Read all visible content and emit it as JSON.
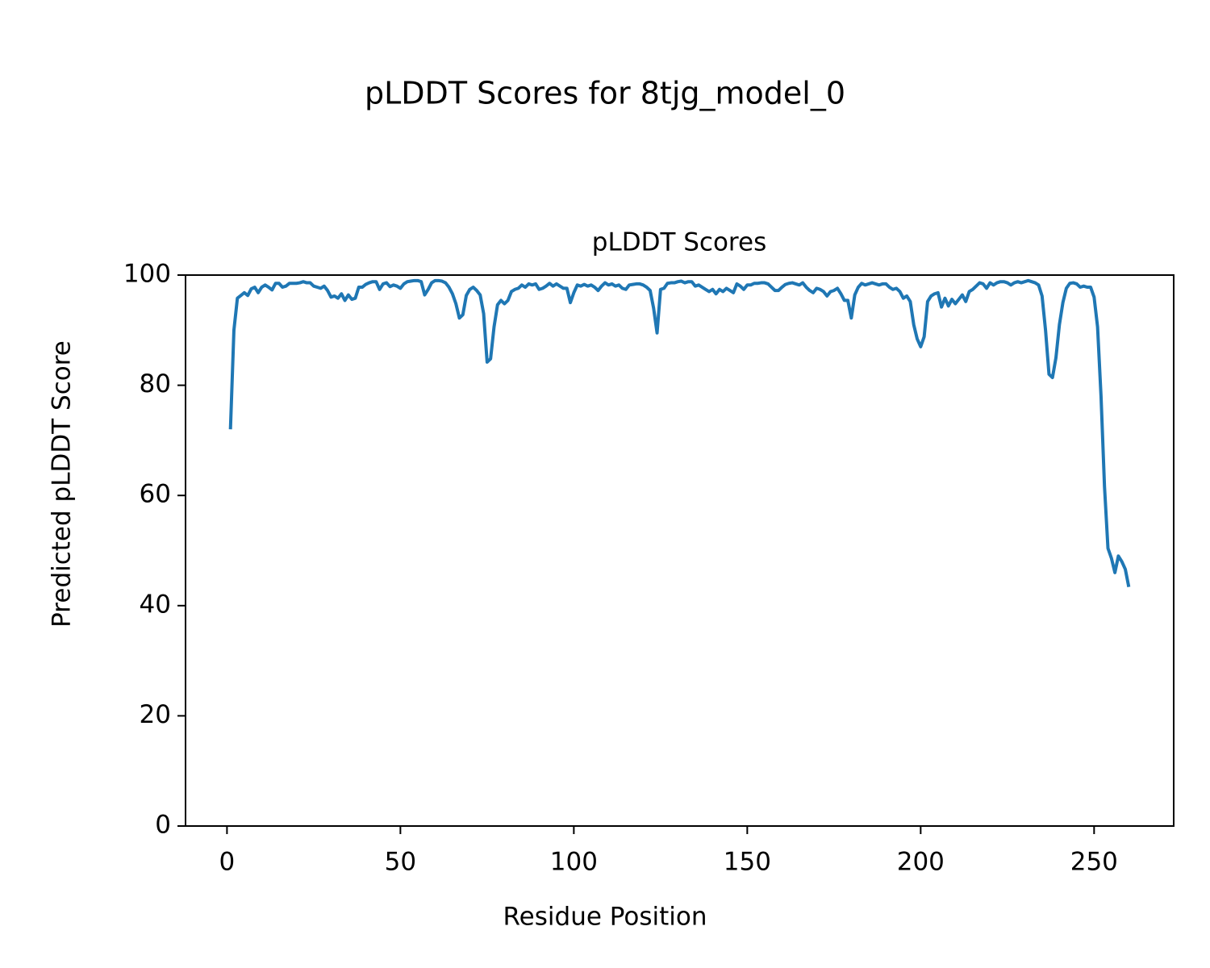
{
  "chart_data": {
    "type": "line",
    "suptitle": "pLDDT Scores for 8tjg_model_0",
    "title": "pLDDT Scores",
    "xlabel": "Residue Position",
    "ylabel": "Predicted pLDDT Score",
    "color": "#1f77b4",
    "xlim": [
      -11.95,
      272.95
    ],
    "ylim": [
      0,
      100
    ],
    "xticks": [
      0,
      50,
      100,
      150,
      200,
      250
    ],
    "yticks": [
      0,
      20,
      40,
      60,
      80,
      100
    ],
    "x": [
      1,
      2,
      3,
      4,
      5,
      6,
      7,
      8,
      9,
      10,
      11,
      12,
      13,
      14,
      15,
      16,
      17,
      18,
      19,
      20,
      21,
      22,
      23,
      24,
      25,
      26,
      27,
      28,
      29,
      30,
      31,
      32,
      33,
      34,
      35,
      36,
      37,
      38,
      39,
      40,
      41,
      42,
      43,
      44,
      45,
      46,
      47,
      48,
      49,
      50,
      51,
      52,
      53,
      54,
      55,
      56,
      57,
      58,
      59,
      60,
      61,
      62,
      63,
      64,
      65,
      66,
      67,
      68,
      69,
      70,
      71,
      72,
      73,
      74,
      75,
      76,
      77,
      78,
      79,
      80,
      81,
      82,
      83,
      84,
      85,
      86,
      87,
      88,
      89,
      90,
      91,
      92,
      93,
      94,
      95,
      96,
      97,
      98,
      99,
      100,
      101,
      102,
      103,
      104,
      105,
      106,
      107,
      108,
      109,
      110,
      111,
      112,
      113,
      114,
      115,
      116,
      117,
      118,
      119,
      120,
      121,
      122,
      123,
      124,
      125,
      126,
      127,
      128,
      129,
      130,
      131,
      132,
      133,
      134,
      135,
      136,
      137,
      138,
      139,
      140,
      141,
      142,
      143,
      144,
      145,
      146,
      147,
      148,
      149,
      150,
      151,
      152,
      153,
      154,
      155,
      156,
      157,
      158,
      159,
      160,
      161,
      162,
      163,
      164,
      165,
      166,
      167,
      168,
      169,
      170,
      171,
      172,
      173,
      174,
      175,
      176,
      177,
      178,
      179,
      180,
      181,
      182,
      183,
      184,
      185,
      186,
      187,
      188,
      189,
      190,
      191,
      192,
      193,
      194,
      195,
      196,
      197,
      198,
      199,
      200,
      201,
      202,
      203,
      204,
      205,
      206,
      207,
      208,
      209,
      210,
      211,
      212,
      213,
      214,
      215,
      216,
      217,
      218,
      219,
      220,
      221,
      222,
      223,
      224,
      225,
      226,
      227,
      228,
      229,
      230,
      231,
      232,
      233,
      234,
      235,
      236,
      237,
      238,
      239,
      240,
      241,
      242,
      243,
      244,
      245,
      246,
      247,
      248,
      249,
      250,
      251,
      252,
      253,
      254,
      255,
      256,
      257,
      258,
      259,
      260
    ],
    "values": [
      72,
      90,
      95.8,
      96.3,
      96.8,
      96.3,
      97.5,
      97.8,
      96.8,
      97.8,
      98.2,
      97.8,
      97.3,
      98.5,
      98.5,
      97.8,
      98,
      98.5,
      98.5,
      98.5,
      98.6,
      98.8,
      98.6,
      98.6,
      98,
      97.8,
      97.6,
      98,
      97.2,
      96,
      96.2,
      95.8,
      96.6,
      95.4,
      96.4,
      95.6,
      95.8,
      97.8,
      97.8,
      98.3,
      98.6,
      98.8,
      98.8,
      97.4,
      98.4,
      98.6,
      97.9,
      98.2,
      98,
      97.6,
      98.4,
      98.8,
      98.9,
      99,
      99,
      98.8,
      96.4,
      97.4,
      98.6,
      99,
      99,
      98.9,
      98.6,
      97.8,
      96.6,
      94.8,
      92.2,
      92.8,
      96.3,
      97.4,
      97.8,
      97.2,
      96.4,
      93,
      84.2,
      84.8,
      90.6,
      94.6,
      95.4,
      94.8,
      95.4,
      97,
      97.4,
      97.6,
      98.2,
      97.8,
      98.4,
      98.2,
      98.4,
      97.4,
      97.6,
      98,
      98.5,
      98,
      98.4,
      98,
      97.6,
      97.6,
      95,
      96.8,
      98.2,
      98,
      98.3,
      98,
      98.2,
      97.8,
      97.2,
      98,
      98.6,
      98.2,
      98.4,
      98,
      98.2,
      97.6,
      97.4,
      98.2,
      98.3,
      98.4,
      98.4,
      98.2,
      97.8,
      97.2,
      94,
      89.5,
      97.4,
      97.6,
      98.5,
      98.6,
      98.6,
      98.8,
      98.9,
      98.6,
      98.8,
      98.8,
      98,
      98.2,
      97.8,
      97.4,
      97,
      97.4,
      96.6,
      97.4,
      97,
      97.6,
      97.2,
      96.8,
      98.4,
      98,
      97.4,
      98.2,
      98.2,
      98.5,
      98.5,
      98.6,
      98.6,
      98.4,
      97.8,
      97.2,
      97.2,
      97.8,
      98.3,
      98.5,
      98.6,
      98.4,
      98.2,
      98.6,
      97.8,
      97.2,
      96.8,
      97.6,
      97.4,
      97,
      96.2,
      97,
      97.2,
      97.6,
      96.6,
      95.4,
      95.4,
      92.2,
      96.4,
      97.8,
      98.5,
      98.2,
      98.4,
      98.6,
      98.4,
      98.2,
      98.4,
      98.4,
      97.8,
      97.4,
      97.6,
      97,
      95.8,
      96.2,
      95.2,
      91,
      88.4,
      87,
      88.8,
      95.2,
      96.2,
      96.6,
      96.8,
      94.2,
      95.8,
      94.4,
      95.6,
      94.8,
      95.6,
      96.4,
      95.2,
      97,
      97.4,
      98,
      98.6,
      98.4,
      97.6,
      98.6,
      98.2,
      98.6,
      98.8,
      98.8,
      98.6,
      98.2,
      98.6,
      98.8,
      98.6,
      98.8,
      99,
      98.8,
      98.6,
      98.2,
      96.2,
      90,
      82,
      81.4,
      85,
      91,
      95,
      97.6,
      98.5,
      98.6,
      98.4,
      97.8,
      98,
      97.8,
      97.8,
      96,
      90.6,
      78,
      61.6,
      50.4,
      48.6,
      46,
      49,
      48,
      46.6,
      43.4
    ]
  }
}
